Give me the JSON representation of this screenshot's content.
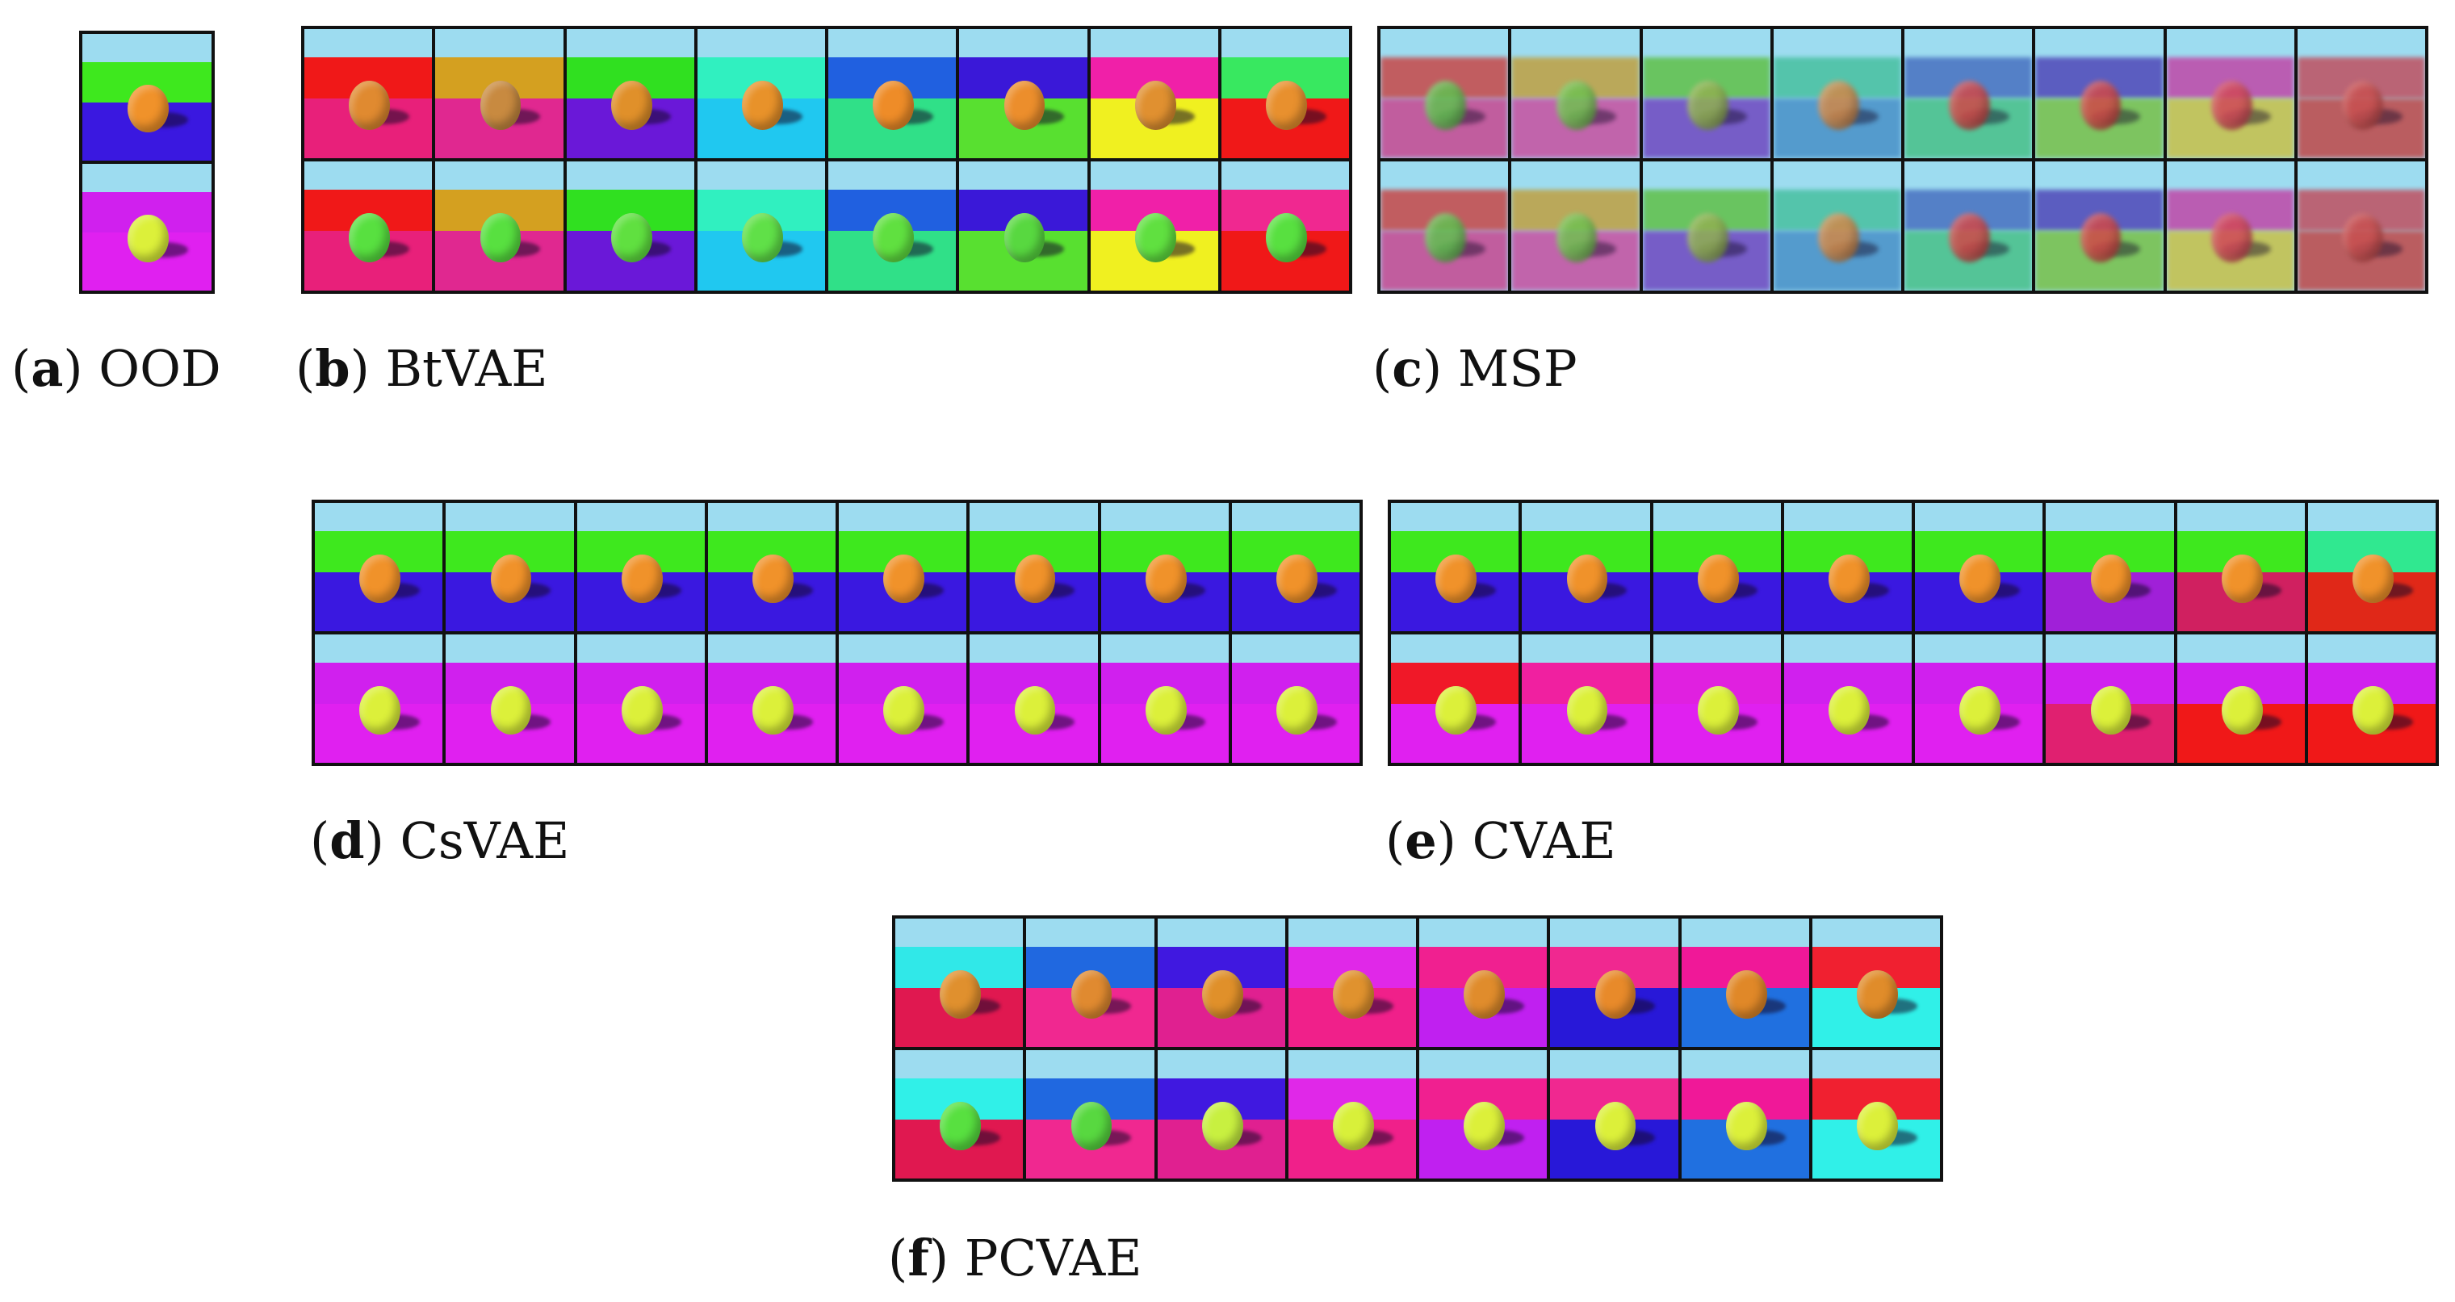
{
  "panels": [
    {
      "id": "a",
      "letter": "a",
      "label": "OOD",
      "columns": 1,
      "blurry": false,
      "rows": [
        [
          {
            "wall": "#3ee81e",
            "floor": "#3a18e0",
            "ball": "#f0922a"
          }
        ],
        [
          {
            "wall": "#d020ee",
            "floor": "#e020f0",
            "ball": "#dcf03a"
          }
        ]
      ]
    },
    {
      "id": "b",
      "letter": "b",
      "label": "BtVAE",
      "columns": 8,
      "blurry": false,
      "rows": [
        [
          {
            "wall": "#f01818",
            "floor": "#e8207a",
            "ball": "#e08a30"
          },
          {
            "wall": "#d4a020",
            "floor": "#e02890",
            "ball": "#c88a40"
          },
          {
            "wall": "#30e020",
            "floor": "#6a18d8",
            "ball": "#e0902a"
          },
          {
            "wall": "#30f0c0",
            "floor": "#20c8f0",
            "ball": "#e8922a"
          },
          {
            "wall": "#2060e0",
            "floor": "#30e088",
            "ball": "#ee8c28"
          },
          {
            "wall": "#3a18d8",
            "floor": "#58e030",
            "ball": "#ec8e2c"
          },
          {
            "wall": "#f020a8",
            "floor": "#f0f020",
            "ball": "#e09030"
          },
          {
            "wall": "#38e860",
            "floor": "#f01818",
            "ball": "#e8902e"
          }
        ],
        [
          {
            "wall": "#f01818",
            "floor": "#e8207a",
            "ball": "#58e040"
          },
          {
            "wall": "#d4a020",
            "floor": "#e02890",
            "ball": "#58e040"
          },
          {
            "wall": "#30e020",
            "floor": "#6a18d8",
            "ball": "#60e040"
          },
          {
            "wall": "#30f0c0",
            "floor": "#20c8f0",
            "ball": "#60e048"
          },
          {
            "wall": "#2060e0",
            "floor": "#30e088",
            "ball": "#60e040"
          },
          {
            "wall": "#3a18d8",
            "floor": "#58e030",
            "ball": "#58d840"
          },
          {
            "wall": "#f020a8",
            "floor": "#f0f020",
            "ball": "#60e040"
          },
          {
            "wall": "#f02890",
            "floor": "#f01818",
            "ball": "#58e040"
          }
        ]
      ]
    },
    {
      "id": "c",
      "letter": "c",
      "label": "MSP",
      "columns": 8,
      "blurry": true,
      "rows": [
        [
          {
            "wall": "#c84848",
            "floor": "#c84890",
            "ball": "#60c050"
          },
          {
            "wall": "#c0a040",
            "floor": "#c850a0",
            "ball": "#70c050"
          },
          {
            "wall": "#60c048",
            "floor": "#7048c0",
            "ball": "#90b050"
          },
          {
            "wall": "#48c0a0",
            "floor": "#4890c8",
            "ball": "#d08848"
          },
          {
            "wall": "#4870c0",
            "floor": "#48c088",
            "ball": "#d04848"
          },
          {
            "wall": "#5048b8",
            "floor": "#78c048",
            "ball": "#d04848"
          },
          {
            "wall": "#c048a8",
            "floor": "#c8c048",
            "ball": "#d04858"
          },
          {
            "wall": "#c05060",
            "floor": "#c04848",
            "ball": "#c85050"
          }
        ],
        [
          {
            "wall": "#c84848",
            "floor": "#c84890",
            "ball": "#60c050"
          },
          {
            "wall": "#c0a040",
            "floor": "#c850a0",
            "ball": "#70c050"
          },
          {
            "wall": "#60c048",
            "floor": "#7048c0",
            "ball": "#90b050"
          },
          {
            "wall": "#48c0a0",
            "floor": "#4890c8",
            "ball": "#d08848"
          },
          {
            "wall": "#4870c0",
            "floor": "#48c088",
            "ball": "#d04848"
          },
          {
            "wall": "#5048b8",
            "floor": "#78c048",
            "ball": "#d04848"
          },
          {
            "wall": "#c048a8",
            "floor": "#c8c048",
            "ball": "#d04858"
          },
          {
            "wall": "#c05060",
            "floor": "#c04848",
            "ball": "#c85050"
          }
        ]
      ]
    },
    {
      "id": "d",
      "letter": "d",
      "label": "CsVAE",
      "columns": 8,
      "blurry": false,
      "rows": [
        [
          {
            "wall": "#3ee81e",
            "floor": "#3a18e0",
            "ball": "#f0922a"
          },
          {
            "wall": "#3ee81e",
            "floor": "#3a18e0",
            "ball": "#f0922a"
          },
          {
            "wall": "#3ee81e",
            "floor": "#3a18e0",
            "ball": "#f0922a"
          },
          {
            "wall": "#3ee81e",
            "floor": "#3a18e0",
            "ball": "#f0922a"
          },
          {
            "wall": "#3ee81e",
            "floor": "#3a18e0",
            "ball": "#f0922a"
          },
          {
            "wall": "#3ee81e",
            "floor": "#3a18e0",
            "ball": "#f0922a"
          },
          {
            "wall": "#3ee81e",
            "floor": "#3a18e0",
            "ball": "#f0922a"
          },
          {
            "wall": "#3ee81e",
            "floor": "#3a18e0",
            "ball": "#f0922a"
          }
        ],
        [
          {
            "wall": "#d020ee",
            "floor": "#e020f0",
            "ball": "#dcf03a"
          },
          {
            "wall": "#d020ee",
            "floor": "#e020f0",
            "ball": "#dcf03a"
          },
          {
            "wall": "#d020ee",
            "floor": "#e020f0",
            "ball": "#dcf03a"
          },
          {
            "wall": "#d020ee",
            "floor": "#e020f0",
            "ball": "#dcf03a"
          },
          {
            "wall": "#d020ee",
            "floor": "#e020f0",
            "ball": "#dcf03a"
          },
          {
            "wall": "#d020ee",
            "floor": "#e020f0",
            "ball": "#dcf03a"
          },
          {
            "wall": "#d020ee",
            "floor": "#e020f0",
            "ball": "#dcf03a"
          },
          {
            "wall": "#d020ee",
            "floor": "#e020f0",
            "ball": "#dcf03a"
          }
        ]
      ]
    },
    {
      "id": "e",
      "letter": "e",
      "label": "CVAE",
      "columns": 8,
      "blurry": false,
      "rows": [
        [
          {
            "wall": "#3ee81e",
            "floor": "#3a18e0",
            "ball": "#f0922a"
          },
          {
            "wall": "#3ee81e",
            "floor": "#3a18e0",
            "ball": "#f0922a"
          },
          {
            "wall": "#3ee81e",
            "floor": "#3a18e0",
            "ball": "#f0922a"
          },
          {
            "wall": "#3ee81e",
            "floor": "#3a18e0",
            "ball": "#f0922a"
          },
          {
            "wall": "#3ee81e",
            "floor": "#3a18e0",
            "ball": "#f0922a"
          },
          {
            "wall": "#3ee81e",
            "floor": "#a020d8",
            "ball": "#f0922a"
          },
          {
            "wall": "#3ee81e",
            "floor": "#d02060",
            "ball": "#f0922a"
          },
          {
            "wall": "#30e890",
            "floor": "#e02818",
            "ball": "#f0922a"
          }
        ],
        [
          {
            "wall": "#f01828",
            "floor": "#e020f0",
            "ball": "#dcf03a"
          },
          {
            "wall": "#f020a0",
            "floor": "#e020f0",
            "ball": "#dcf03a"
          },
          {
            "wall": "#e020e0",
            "floor": "#e020f0",
            "ball": "#dcf03a"
          },
          {
            "wall": "#d020ee",
            "floor": "#e020f0",
            "ball": "#dcf03a"
          },
          {
            "wall": "#d020ee",
            "floor": "#e020f0",
            "ball": "#dcf03a"
          },
          {
            "wall": "#d020ee",
            "floor": "#e02070",
            "ball": "#dcf03a"
          },
          {
            "wall": "#d020ee",
            "floor": "#f01818",
            "ball": "#dcf03a"
          },
          {
            "wall": "#d020ee",
            "floor": "#f01818",
            "ball": "#dcf03a"
          }
        ]
      ]
    },
    {
      "id": "f",
      "letter": "f",
      "label": "PCVAE",
      "columns": 8,
      "blurry": false,
      "rows": [
        [
          {
            "wall": "#30e8e8",
            "floor": "#e01850",
            "ball": "#e0902e"
          },
          {
            "wall": "#2068e0",
            "floor": "#f02890",
            "ball": "#e08a30"
          },
          {
            "wall": "#4018e0",
            "floor": "#e02090",
            "ball": "#e0902a"
          },
          {
            "wall": "#e028e8",
            "floor": "#f0208a",
            "ball": "#e0922e"
          },
          {
            "wall": "#f02090",
            "floor": "#c020f0",
            "ball": "#e08c2c"
          },
          {
            "wall": "#f02890",
            "floor": "#2818d8",
            "ball": "#e88a2a"
          },
          {
            "wall": "#f01898",
            "floor": "#2070e0",
            "ball": "#e08828"
          },
          {
            "wall": "#f02030",
            "floor": "#30f0e8",
            "ball": "#e08c2a"
          }
        ],
        [
          {
            "wall": "#30f0e8",
            "floor": "#e01850",
            "ball": "#58e040"
          },
          {
            "wall": "#2068e0",
            "floor": "#f02890",
            "ball": "#58d840"
          },
          {
            "wall": "#4018e0",
            "floor": "#e02090",
            "ball": "#c8f040"
          },
          {
            "wall": "#e028e8",
            "floor": "#f0208a",
            "ball": "#d8f03a"
          },
          {
            "wall": "#f02090",
            "floor": "#c020f0",
            "ball": "#dcf03a"
          },
          {
            "wall": "#f02890",
            "floor": "#2818d8",
            "ball": "#dcf03a"
          },
          {
            "wall": "#f01898",
            "floor": "#2070e0",
            "ball": "#dcf03a"
          },
          {
            "wall": "#f02030",
            "floor": "#30f0e8",
            "ball": "#dcf03a"
          }
        ]
      ]
    }
  ]
}
